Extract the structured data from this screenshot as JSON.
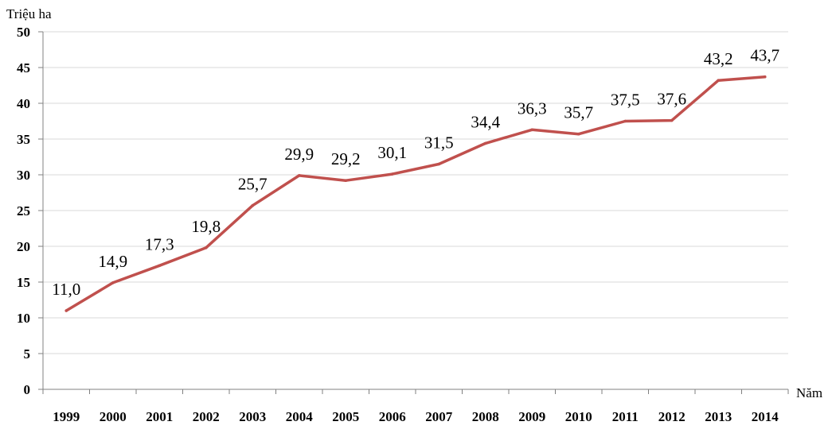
{
  "chart_data": {
    "type": "line",
    "ylabel": "Triệu ha",
    "xlabel": "Năm",
    "ylim": [
      0,
      50
    ],
    "y_ticks": [
      "0",
      "5",
      "10",
      "15",
      "20",
      "25",
      "30",
      "35",
      "40",
      "45",
      "50"
    ],
    "grid": true,
    "categories": [
      "1999",
      "2000",
      "2001",
      "2002",
      "2003",
      "2004",
      "2005",
      "2006",
      "2007",
      "2008",
      "2009",
      "2010",
      "2011",
      "2012",
      "2013",
      "2014"
    ],
    "series": [
      {
        "color": "#c0504d",
        "values": [
          11.0,
          14.9,
          17.3,
          19.8,
          25.7,
          29.9,
          29.2,
          30.1,
          31.5,
          34.4,
          36.3,
          35.7,
          37.5,
          37.6,
          43.2,
          43.7
        ],
        "labels": [
          "11,0",
          "14,9",
          "17,3",
          "19,8",
          "25,7",
          "29,9",
          "29,2",
          "30,1",
          "31,5",
          "34,4",
          "36,3",
          "35,7",
          "37,5",
          "37,6",
          "43,2",
          "43,7"
        ]
      }
    ]
  }
}
